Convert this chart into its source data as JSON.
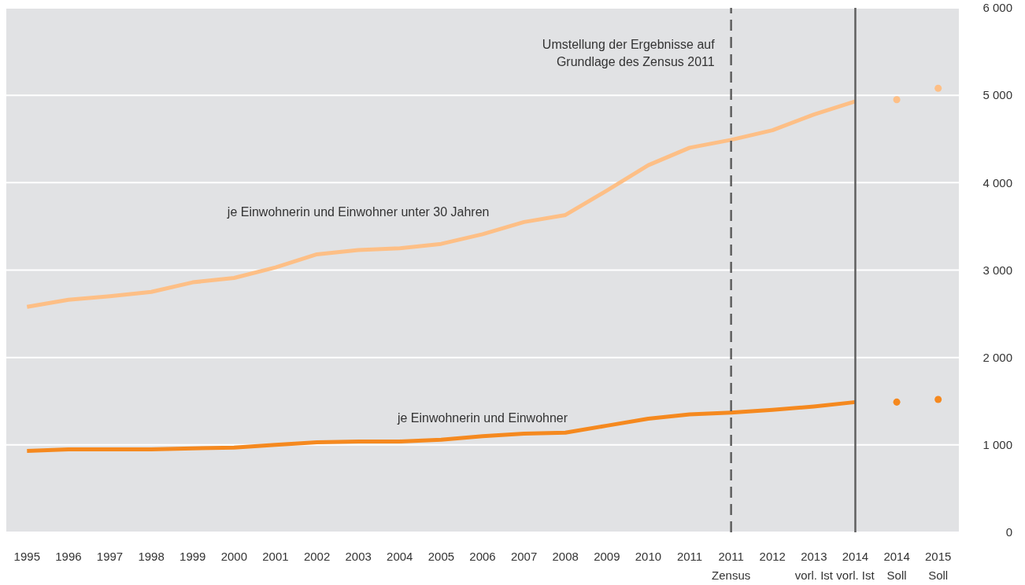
{
  "chart_data": {
    "type": "line",
    "categories": [
      "1995",
      "1996",
      "1997",
      "1998",
      "1999",
      "2000",
      "2001",
      "2002",
      "2003",
      "2004",
      "2005",
      "2006",
      "2007",
      "2008",
      "2009",
      "2010",
      "2011",
      "2011 Zensus",
      "2012",
      "2013 vorl. Ist",
      "2014 vorl. Ist",
      "2014 Soll",
      "2015 Soll"
    ],
    "series": [
      {
        "name": "je Einwohnerin und Einwohner unter 30 Jahren",
        "color": "#fdbf86",
        "values": [
          2580,
          2660,
          2700,
          2750,
          2860,
          2910,
          3030,
          3180,
          3230,
          3250,
          3300,
          3410,
          3550,
          3630,
          3910,
          4200,
          4400,
          4490,
          4600,
          4780,
          4930,
          null,
          null
        ]
      },
      {
        "name": "je Einwohnerin und Einwohner",
        "color": "#f5891f",
        "values": [
          930,
          950,
          950,
          950,
          960,
          970,
          1000,
          1030,
          1040,
          1040,
          1060,
          1100,
          1130,
          1140,
          1220,
          1300,
          1350,
          1370,
          1400,
          1440,
          1490,
          null,
          null
        ]
      },
      {
        "type": "scatter",
        "color": "#fdbf86",
        "marker": "circle",
        "values": [
          null,
          null,
          null,
          null,
          null,
          null,
          null,
          null,
          null,
          null,
          null,
          null,
          null,
          null,
          null,
          null,
          null,
          null,
          null,
          null,
          null,
          4950,
          5080
        ]
      },
      {
        "type": "scatter",
        "color": "#f5891f",
        "marker": "circle",
        "values": [
          null,
          null,
          null,
          null,
          null,
          null,
          null,
          null,
          null,
          null,
          null,
          null,
          null,
          null,
          null,
          null,
          null,
          null,
          null,
          null,
          null,
          1490,
          1520
        ]
      }
    ],
    "ylim": [
      0,
      6000
    ],
    "yticks": [
      0,
      {
        "value": 1000,
        "label": "1 000"
      },
      {
        "value": 2000,
        "label": "2 000"
      },
      {
        "value": 3000,
        "label": "3 000"
      },
      {
        "value": 4000,
        "label": "4 000"
      },
      {
        "value": 5000,
        "label": "5 000"
      },
      {
        "value": 6000,
        "label": "6 000"
      }
    ],
    "grid": "y",
    "legend": false,
    "ref_lines": [
      {
        "axis": "x",
        "value": "2011 Zensus",
        "label": "Umstellung der Ergebnisse auf\nGrundlage des Zensus 2011",
        "color": "#5f5f5f",
        "line_style": "dashed"
      },
      {
        "axis": "x",
        "value": "2014 vorl. Ist",
        "color": "#5f5f5f",
        "line_style": "solid"
      }
    ]
  }
}
